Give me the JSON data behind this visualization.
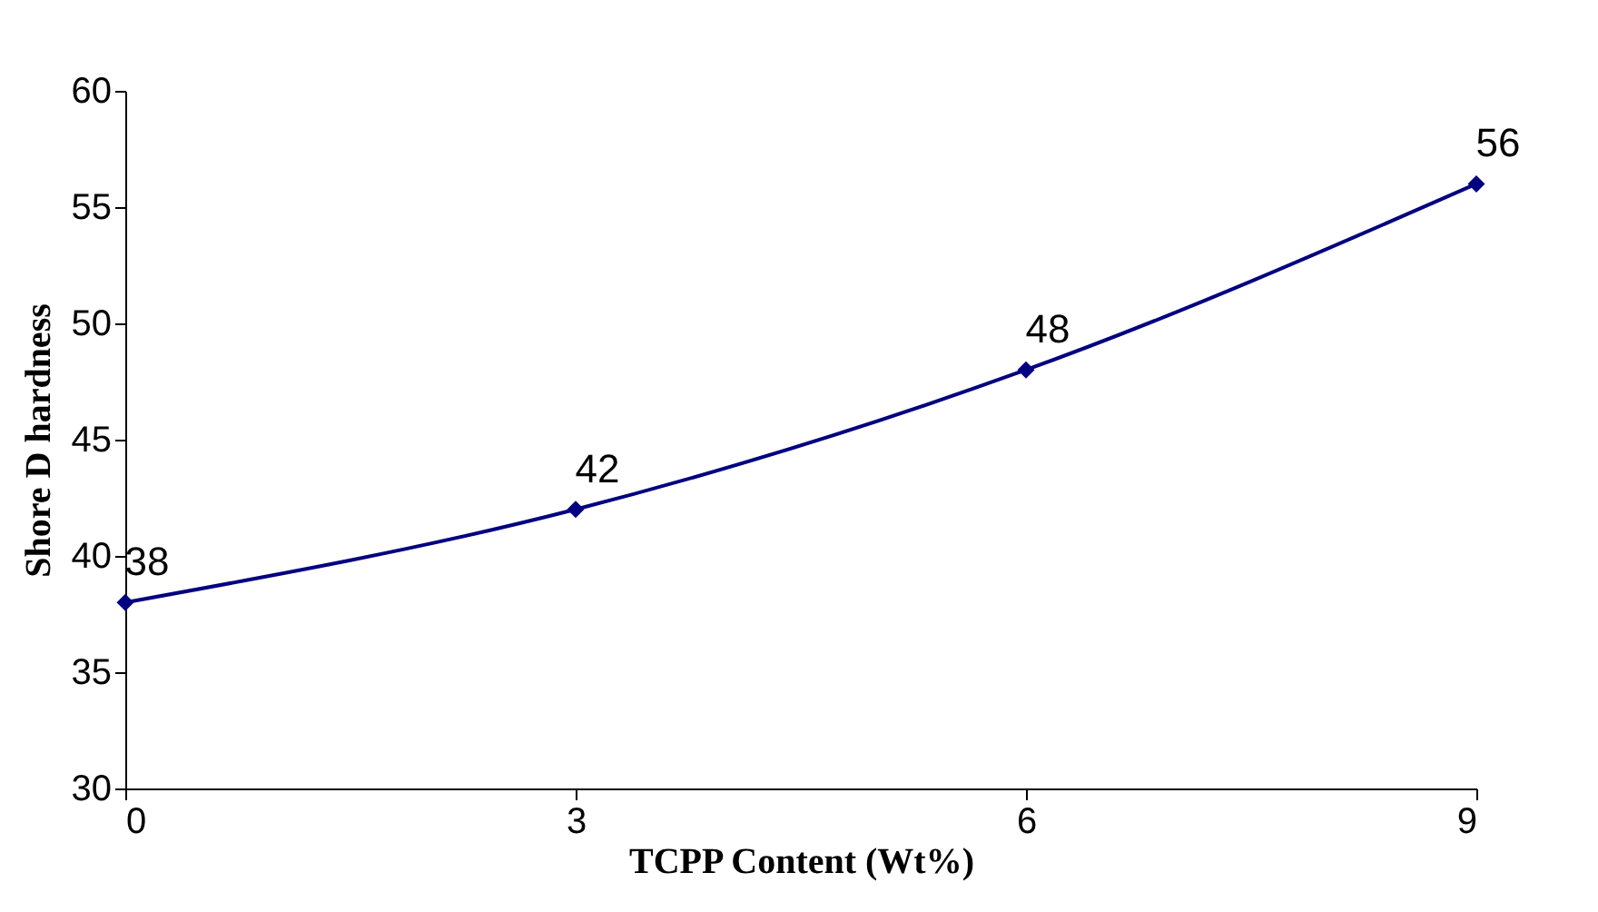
{
  "chart_data": {
    "type": "line",
    "xlabel": "TCPP Content (Wt%)",
    "ylabel": "Shore D hardness",
    "x": [
      0,
      3,
      6,
      9
    ],
    "series": [
      {
        "color": "#000080",
        "values": [
          38,
          42,
          48,
          56
        ]
      }
    ],
    "xlim": [
      0,
      9
    ],
    "xticks": [
      0,
      3,
      6,
      9
    ],
    "ylim": [
      30,
      60
    ],
    "yticks": [
      30,
      35,
      40,
      45,
      50,
      55,
      60
    ],
    "marker": "diamond",
    "line_style": "solid",
    "data_labels": true,
    "grid": false,
    "legend": false
  }
}
